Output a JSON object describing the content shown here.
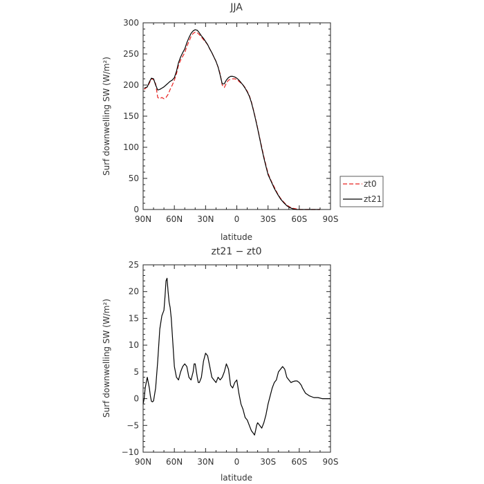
{
  "chart_data": [
    {
      "type": "line",
      "title": "JJA",
      "xlabel": "latitude",
      "ylabel": "Surf downwelling SW (W/m²)",
      "xlim": [
        90,
        -90
      ],
      "ylim": [
        0,
        300
      ],
      "xticks": [
        90,
        60,
        30,
        0,
        -30,
        -60,
        -90
      ],
      "xtick_labels": [
        "90N",
        "60N",
        "30N",
        "0",
        "30S",
        "60S",
        "90S"
      ],
      "yticks": [
        0,
        50,
        100,
        150,
        200,
        250,
        300
      ],
      "ytick_labels": [
        "0",
        "50",
        "100",
        "150",
        "200",
        "250",
        "300"
      ],
      "legend": "right",
      "series": [
        {
          "name": "zt0",
          "color": "#e8201f",
          "dash": "dashed",
          "x": [
            89,
            86,
            84,
            82,
            80,
            78,
            76,
            74,
            72,
            70,
            68,
            66,
            64,
            62,
            60,
            58,
            56,
            54,
            52,
            50,
            48,
            46,
            44,
            42,
            40,
            38,
            36,
            34,
            32,
            30,
            28,
            26,
            24,
            22,
            20,
            18,
            16,
            14,
            12,
            10,
            8,
            6,
            4,
            2,
            0,
            -2,
            -4,
            -6,
            -8,
            -10,
            -12,
            -14,
            -16,
            -18,
            -20,
            -22,
            -24,
            -26,
            -28,
            -30,
            -33,
            -36,
            -39,
            -42,
            -45,
            -48,
            -51,
            -54,
            -57,
            -60,
            -63,
            -66,
            -69,
            -72,
            -75,
            -78,
            -80
          ],
          "y": [
            193,
            197,
            203,
            210,
            209,
            202,
            180,
            178,
            180,
            178,
            180,
            185,
            193,
            200,
            208,
            218,
            232,
            240,
            246,
            252,
            262,
            270,
            278,
            283,
            285,
            284,
            281,
            277,
            273,
            269,
            265,
            258,
            252,
            245,
            238,
            229,
            218,
            200,
            196,
            203,
            208,
            209,
            210,
            210,
            209,
            206,
            203,
            200,
            196,
            190,
            183,
            173,
            160,
            146,
            131,
            115,
            100,
            85,
            71,
            58,
            46,
            36,
            26,
            18,
            12,
            7,
            4,
            2,
            1,
            0,
            0,
            0,
            0,
            0,
            0,
            0,
            0
          ]
        },
        {
          "name": "zt21",
          "color": "#000000",
          "dash": "solid",
          "x": [
            89,
            86,
            84,
            82,
            80,
            78,
            76,
            74,
            72,
            70,
            68,
            66,
            64,
            62,
            60,
            58,
            56,
            54,
            52,
            50,
            48,
            46,
            44,
            42,
            40,
            38,
            36,
            34,
            32,
            30,
            28,
            26,
            24,
            22,
            20,
            18,
            16,
            14,
            12,
            10,
            8,
            6,
            4,
            2,
            0,
            -2,
            -4,
            -6,
            -8,
            -10,
            -12,
            -14,
            -16,
            -18,
            -20,
            -22,
            -24,
            -26,
            -28,
            -30,
            -33,
            -36,
            -39,
            -42,
            -45,
            -48,
            -51,
            -54,
            -57,
            -60,
            -63,
            -66,
            -69,
            -72,
            -75,
            -78,
            -80
          ],
          "y": [
            195,
            197,
            205,
            211,
            210,
            200,
            192,
            193,
            195,
            197,
            200,
            203,
            206,
            208,
            212,
            222,
            236,
            245,
            252,
            258,
            268,
            276,
            283,
            287,
            289,
            288,
            284,
            279,
            275,
            270,
            265,
            258,
            252,
            245,
            238,
            229,
            216,
            202,
            202,
            208,
            212,
            214,
            214,
            213,
            211,
            208,
            204,
            200,
            195,
            189,
            182,
            172,
            159,
            145,
            130,
            114,
            98,
            83,
            69,
            56,
            45,
            34,
            25,
            17,
            11,
            6,
            3,
            1,
            0,
            0,
            0,
            0,
            0,
            0,
            0,
            0,
            0
          ]
        }
      ]
    },
    {
      "type": "line",
      "title": "zt21 − zt0",
      "xlabel": "latitude",
      "ylabel": "Surf downwelling SW (W/m²)",
      "xlim": [
        90,
        -90
      ],
      "ylim": [
        -10,
        25
      ],
      "xticks": [
        90,
        60,
        30,
        0,
        -30,
        -60,
        -90
      ],
      "xtick_labels": [
        "90N",
        "60N",
        "30N",
        "0",
        "30S",
        "60S",
        "90S"
      ],
      "yticks": [
        -10,
        -5,
        0,
        5,
        10,
        15,
        20,
        25
      ],
      "ytick_labels": [
        "−10",
        "−5",
        "0",
        "5",
        "10",
        "15",
        "20",
        "25"
      ],
      "series": [
        {
          "color": "#000000",
          "dash": "solid",
          "x": [
            90,
            89,
            88,
            86,
            84,
            83,
            82,
            81,
            80,
            78,
            76,
            74,
            72,
            71,
            70,
            69,
            68,
            67,
            66,
            65,
            64,
            63,
            62,
            61,
            60,
            58,
            56,
            54,
            52,
            50,
            48,
            46,
            44,
            42,
            41,
            40,
            38,
            37,
            36,
            34,
            32,
            30,
            28,
            26,
            24,
            22,
            20,
            18,
            16,
            14,
            12,
            10,
            8,
            6,
            4,
            2,
            0,
            -2,
            -4,
            -6,
            -8,
            -10,
            -12,
            -14,
            -16,
            -17,
            -18,
            -19,
            -20,
            -22,
            -24,
            -26,
            -28,
            -30,
            -32,
            -34,
            -36,
            -38,
            -40,
            -42,
            -44,
            -46,
            -48,
            -50,
            -52,
            -54,
            -56,
            -58,
            -60,
            -62,
            -63,
            -66,
            -70,
            -74,
            -78,
            -82,
            -86,
            -90
          ],
          "y": [
            -1,
            0,
            2,
            4,
            2,
            0.5,
            -0.5,
            -0.6,
            -0.4,
            2,
            7,
            13,
            15.5,
            16,
            16.5,
            19,
            22,
            22.5,
            20,
            18,
            17,
            15,
            12,
            9,
            6,
            4,
            3.5,
            5,
            6,
            6.5,
            6,
            4,
            3.5,
            5,
            6.5,
            6.5,
            4,
            3,
            3,
            4,
            7,
            8.5,
            8,
            6,
            4,
            3.5,
            3,
            4,
            3.5,
            4,
            5,
            6.5,
            5.5,
            2.5,
            2,
            3,
            3.5,
            1,
            -1,
            -2,
            -3.5,
            -4,
            -5,
            -6,
            -6.5,
            -6.8,
            -6,
            -5,
            -4.5,
            -5,
            -5.5,
            -4.5,
            -3,
            -1,
            0.5,
            2,
            3,
            3.5,
            5,
            5.5,
            6,
            5.5,
            4,
            3.5,
            3,
            3.2,
            3.3,
            3.3,
            3,
            2.5,
            2,
            1,
            0.5,
            0.2,
            0.2,
            0,
            0,
            0
          ]
        }
      ]
    }
  ]
}
